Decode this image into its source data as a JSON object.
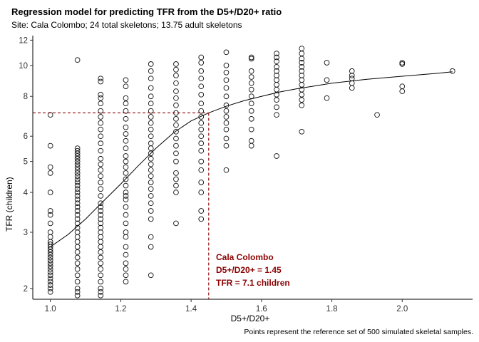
{
  "title": "Regression model for predicting TFR from the D5+/D20+ ratio",
  "subtitle": "Site: Cala Colombo; 24 total skeletons; 13.75 adult skeletons",
  "caption": "Points represent the reference set of 500 simulated skeletal samples.",
  "annotation": {
    "site": "Cala Colombo",
    "ratio_text": "D5+/D20+ = 1.45",
    "tfr_text": "TFR = 7.1 children",
    "color": "#8b0000"
  },
  "chart_data": {
    "type": "scatter",
    "title": "Regression model for predicting TFR from the D5+/D20+ ratio",
    "subtitle": "Site: Cala Colombo; 24 total skeletons; 13.75 adult skeletons",
    "xlabel": "D5+/D20+",
    "ylabel": "TFR (children)",
    "y_scale": "log",
    "xlim": [
      0.95,
      2.2
    ],
    "ylim": [
      1.85,
      12.4
    ],
    "x_ticks": [
      1.0,
      1.2,
      1.4,
      1.6,
      1.8,
      2.0
    ],
    "x_tick_labels": [
      "1.0",
      "1.2",
      "1.4",
      "1.6",
      "1.8",
      "2.0"
    ],
    "y_ticks": [
      2,
      3,
      4,
      5,
      6,
      8,
      10,
      12
    ],
    "y_tick_labels": [
      "2",
      "3",
      "4",
      "5",
      "6",
      "8",
      "10",
      "12"
    ],
    "grid": false,
    "points": [
      {
        "x": 1.0,
        "y": [
          7.0,
          5.6,
          4.8,
          4.6,
          4.0,
          3.5,
          3.4,
          3.2,
          3.0,
          2.9,
          2.8,
          2.75,
          2.7,
          2.65,
          2.6,
          2.55,
          2.5,
          2.45,
          2.4,
          2.35,
          2.3,
          2.25,
          2.2,
          2.15,
          2.1,
          2.05,
          2.0,
          1.95
        ]
      },
      {
        "x": 1.0769,
        "y": [
          10.4,
          5.5,
          5.4,
          5.3,
          5.2,
          5.1,
          5.0,
          4.9,
          4.8,
          4.7,
          4.6,
          4.5,
          4.4,
          4.3,
          4.2,
          4.1,
          4.0,
          3.9,
          3.8,
          3.7,
          3.6,
          3.5,
          3.4,
          3.3,
          3.2,
          3.1,
          3.0,
          2.9,
          2.8,
          2.7,
          2.6,
          2.5,
          2.4,
          2.3,
          2.2,
          2.1,
          2.0,
          1.95,
          1.9
        ]
      },
      {
        "x": 1.1429,
        "y": [
          9.1,
          8.9,
          8.1,
          7.9,
          7.6,
          7.2,
          6.9,
          6.6,
          6.3,
          6.0,
          5.7,
          5.4,
          5.1,
          4.9,
          4.7,
          4.5,
          4.3,
          4.1,
          3.9,
          3.7,
          3.6,
          3.5,
          3.4,
          3.3,
          3.2,
          3.1,
          3.0,
          2.9,
          2.8,
          2.7,
          2.6,
          2.5,
          2.4,
          2.3,
          2.2,
          2.1,
          2.0,
          1.95,
          1.9
        ]
      },
      {
        "x": 1.2143,
        "y": [
          9.0,
          8.6,
          7.9,
          7.6,
          7.2,
          6.8,
          6.4,
          6.1,
          5.8,
          5.5,
          5.2,
          5.0,
          4.8,
          4.6,
          4.4,
          4.2,
          4.0,
          3.9,
          3.8,
          3.6,
          3.4,
          3.2,
          3.0,
          2.9,
          2.7,
          2.55,
          2.4,
          2.3,
          2.2,
          2.1
        ]
      },
      {
        "x": 1.2857,
        "y": [
          10.1,
          9.6,
          9.1,
          8.5,
          8.0,
          7.6,
          7.2,
          6.9,
          6.6,
          6.3,
          6.0,
          5.7,
          5.5,
          5.3,
          5.1,
          4.9,
          4.7,
          4.5,
          4.3,
          4.1,
          3.9,
          3.7,
          3.5,
          3.3,
          2.9,
          2.7,
          2.2
        ]
      },
      {
        "x": 1.3571,
        "y": [
          10.1,
          9.7,
          9.3,
          8.8,
          8.3,
          7.9,
          7.5,
          7.1,
          6.8,
          6.5,
          6.2,
          5.9,
          5.6,
          5.3,
          5.0,
          4.6,
          4.4,
          4.2,
          4.0,
          3.2
        ]
      },
      {
        "x": 1.4286,
        "y": [
          10.6,
          10.2,
          9.6,
          9.1,
          8.6,
          8.1,
          7.6,
          7.2,
          6.9,
          6.6,
          6.3,
          6.0,
          5.7,
          5.4,
          5.0,
          4.7,
          4.3,
          4.0,
          3.5,
          3.3
        ]
      },
      {
        "x": 1.5,
        "y": [
          11.0,
          10.0,
          9.5,
          9.0,
          8.5,
          8.0,
          7.5,
          7.2,
          6.9,
          6.6,
          6.3,
          5.9,
          5.6,
          4.7
        ]
      },
      {
        "x": 1.5714,
        "y": [
          10.6,
          10.5,
          9.6,
          9.2,
          8.8,
          8.4,
          8.0,
          7.6,
          7.2,
          6.8,
          6.3,
          5.8,
          5.6
        ]
      },
      {
        "x": 1.6429,
        "y": [
          10.9,
          10.6,
          10.3,
          9.9,
          9.6,
          9.3,
          9.0,
          8.7,
          8.4,
          8.1,
          7.8,
          7.4,
          7.0,
          5.2
        ]
      },
      {
        "x": 1.7143,
        "y": [
          11.3,
          10.9,
          10.5,
          10.2,
          9.9,
          9.6,
          9.3,
          9.0,
          8.7,
          8.4,
          8.1,
          7.8,
          7.5,
          6.2
        ]
      },
      {
        "x": 1.7857,
        "y": [
          10.2,
          9.0,
          7.9
        ]
      },
      {
        "x": 1.8571,
        "y": [
          9.6,
          9.3,
          9.1,
          8.8,
          8.5
        ]
      },
      {
        "x": 1.9286,
        "y": [
          7.0
        ]
      },
      {
        "x": 2.0,
        "y": [
          10.2,
          10.1,
          8.6,
          8.3
        ]
      },
      {
        "x": 2.1429,
        "y": [
          9.6
        ]
      }
    ],
    "regression_line": {
      "x": [
        1.0,
        1.05,
        1.1,
        1.15,
        1.2,
        1.25,
        1.3,
        1.35,
        1.4,
        1.45,
        1.5,
        1.55,
        1.6,
        1.65,
        1.7,
        1.75,
        1.8,
        1.9,
        2.0,
        2.1,
        2.1429
      ],
      "y": [
        2.7,
        2.95,
        3.3,
        3.75,
        4.25,
        4.85,
        5.5,
        6.15,
        6.7,
        7.1,
        7.45,
        7.75,
        8.0,
        8.25,
        8.45,
        8.62,
        8.8,
        9.05,
        9.25,
        9.45,
        9.55
      ]
    },
    "reference": {
      "x": 1.45,
      "y": 7.1
    }
  }
}
